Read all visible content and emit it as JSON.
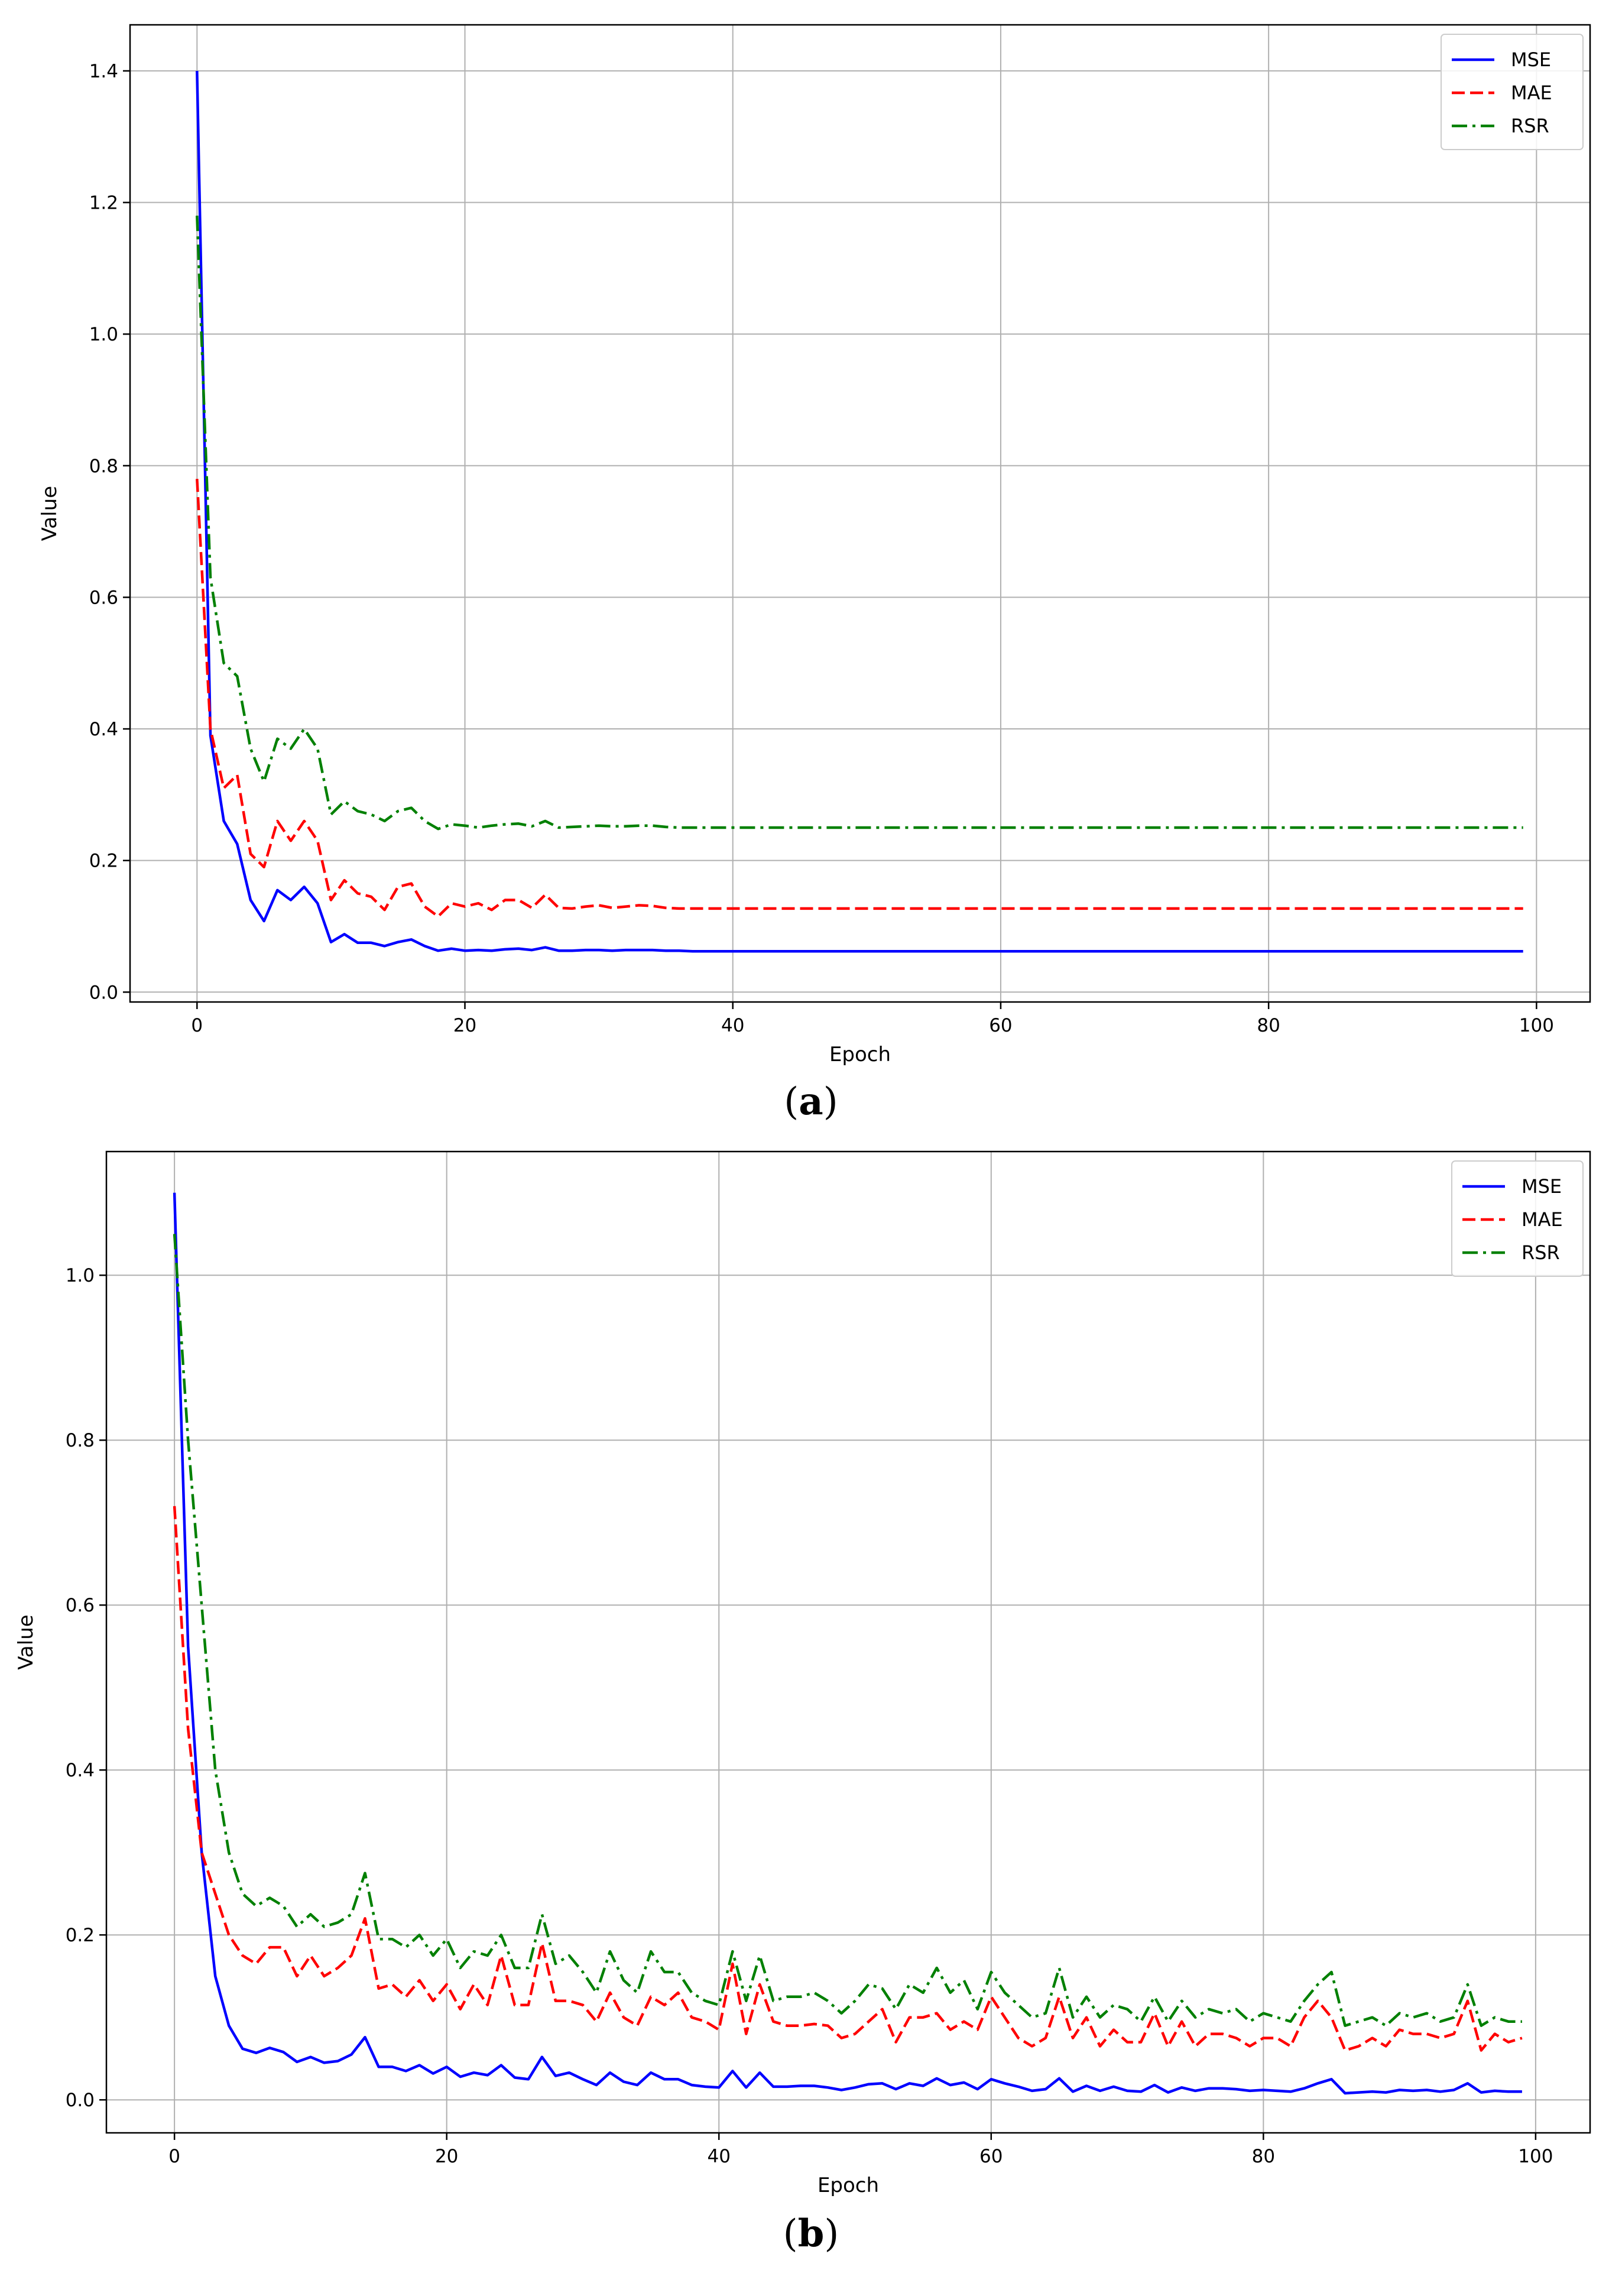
{
  "chart_data": [
    {
      "type": "line",
      "caption": "(a)",
      "caption_letter": "a",
      "xlabel": "Epoch",
      "ylabel": "Value",
      "xlim": [
        -5,
        104
      ],
      "ylim": [
        -0.015,
        1.47
      ],
      "xticks": [
        0,
        20,
        40,
        60,
        80,
        100
      ],
      "xtick_labels": [
        "0",
        "20",
        "40",
        "60",
        "80",
        "100"
      ],
      "yticks": [
        0.0,
        0.2,
        0.4,
        0.6,
        0.8,
        1.0,
        1.2,
        1.4
      ],
      "ytick_labels": [
        "0.0",
        "0.2",
        "0.4",
        "0.6",
        "0.8",
        "1.0",
        "1.2",
        "1.4"
      ],
      "grid": true,
      "legend_position": "top-right",
      "x": [
        0,
        1,
        2,
        3,
        4,
        5,
        6,
        7,
        8,
        9,
        10,
        11,
        12,
        13,
        14,
        15,
        16,
        17,
        18,
        19,
        20,
        21,
        22,
        23,
        24,
        25,
        26,
        27,
        28,
        29,
        30,
        31,
        32,
        33,
        34,
        35,
        36,
        37,
        38,
        39,
        40,
        41,
        42,
        43,
        44,
        45,
        46,
        47,
        48,
        49,
        50,
        51,
        52,
        53,
        54,
        55,
        56,
        57,
        58,
        59,
        60,
        61,
        62,
        63,
        64,
        65,
        66,
        67,
        68,
        69,
        70,
        71,
        72,
        73,
        74,
        75,
        76,
        77,
        78,
        79,
        80,
        81,
        82,
        83,
        84,
        85,
        86,
        87,
        88,
        89,
        90,
        91,
        92,
        93,
        94,
        95,
        96,
        97,
        98,
        99
      ],
      "series": [
        {
          "name": "MSE",
          "color": "#0000ff",
          "dash": "solid",
          "values": [
            1.4,
            0.39,
            0.26,
            0.225,
            0.14,
            0.108,
            0.155,
            0.14,
            0.16,
            0.135,
            0.076,
            0.088,
            0.075,
            0.075,
            0.07,
            0.076,
            0.08,
            0.07,
            0.063,
            0.066,
            0.063,
            0.064,
            0.063,
            0.065,
            0.066,
            0.064,
            0.068,
            0.063,
            0.063,
            0.064,
            0.064,
            0.063,
            0.064,
            0.064,
            0.064,
            0.063,
            0.063,
            0.062,
            0.062,
            0.062,
            0.062,
            0.062,
            0.062,
            0.062,
            0.062,
            0.062,
            0.062,
            0.062,
            0.062,
            0.062,
            0.062,
            0.062,
            0.062,
            0.062,
            0.062,
            0.062,
            0.062,
            0.062,
            0.062,
            0.062,
            0.062,
            0.062,
            0.062,
            0.062,
            0.062,
            0.062,
            0.062,
            0.062,
            0.062,
            0.062,
            0.062,
            0.062,
            0.062,
            0.062,
            0.062,
            0.062,
            0.062,
            0.062,
            0.062,
            0.062,
            0.062,
            0.062,
            0.062,
            0.062,
            0.062,
            0.062,
            0.062,
            0.062,
            0.062,
            0.062,
            0.062,
            0.062,
            0.062,
            0.062,
            0.062,
            0.062,
            0.062,
            0.062,
            0.062,
            0.062
          ]
        },
        {
          "name": "MAE",
          "color": "#ff0000",
          "dash": "dashed",
          "values": [
            0.78,
            0.4,
            0.31,
            0.33,
            0.21,
            0.19,
            0.26,
            0.23,
            0.26,
            0.23,
            0.14,
            0.17,
            0.15,
            0.145,
            0.125,
            0.16,
            0.165,
            0.13,
            0.115,
            0.135,
            0.13,
            0.135,
            0.125,
            0.14,
            0.14,
            0.128,
            0.148,
            0.128,
            0.127,
            0.13,
            0.132,
            0.128,
            0.13,
            0.132,
            0.131,
            0.128,
            0.127,
            0.127,
            0.127,
            0.127,
            0.127,
            0.127,
            0.127,
            0.127,
            0.127,
            0.127,
            0.127,
            0.127,
            0.127,
            0.127,
            0.127,
            0.127,
            0.127,
            0.127,
            0.127,
            0.127,
            0.127,
            0.127,
            0.127,
            0.127,
            0.127,
            0.127,
            0.127,
            0.127,
            0.127,
            0.127,
            0.127,
            0.127,
            0.127,
            0.127,
            0.127,
            0.127,
            0.127,
            0.127,
            0.127,
            0.127,
            0.127,
            0.127,
            0.127,
            0.127,
            0.127,
            0.127,
            0.127,
            0.127,
            0.127,
            0.127,
            0.127,
            0.127,
            0.127,
            0.127,
            0.127,
            0.127,
            0.127,
            0.127,
            0.127,
            0.127,
            0.127,
            0.127,
            0.127,
            0.127
          ]
        },
        {
          "name": "RSR",
          "color": "#008000",
          "dash": "dashdot",
          "values": [
            1.18,
            0.63,
            0.5,
            0.48,
            0.37,
            0.32,
            0.385,
            0.37,
            0.4,
            0.37,
            0.27,
            0.29,
            0.275,
            0.27,
            0.26,
            0.275,
            0.28,
            0.26,
            0.248,
            0.255,
            0.253,
            0.25,
            0.253,
            0.255,
            0.256,
            0.252,
            0.26,
            0.25,
            0.251,
            0.252,
            0.253,
            0.252,
            0.252,
            0.253,
            0.253,
            0.251,
            0.25,
            0.25,
            0.25,
            0.25,
            0.25,
            0.25,
            0.25,
            0.25,
            0.25,
            0.25,
            0.25,
            0.25,
            0.25,
            0.25,
            0.25,
            0.25,
            0.25,
            0.25,
            0.25,
            0.25,
            0.25,
            0.25,
            0.25,
            0.25,
            0.25,
            0.25,
            0.25,
            0.25,
            0.25,
            0.25,
            0.25,
            0.25,
            0.25,
            0.25,
            0.25,
            0.25,
            0.25,
            0.25,
            0.25,
            0.25,
            0.25,
            0.25,
            0.25,
            0.25,
            0.25,
            0.25,
            0.25,
            0.25,
            0.25,
            0.25,
            0.25,
            0.25,
            0.25,
            0.25,
            0.25,
            0.25,
            0.25,
            0.25,
            0.25,
            0.25,
            0.25,
            0.25,
            0.25,
            0.25
          ]
        }
      ]
    },
    {
      "type": "line",
      "caption": "(b)",
      "caption_letter": "b",
      "xlabel": "Epoch",
      "ylabel": "Value",
      "xlim": [
        -5,
        104
      ],
      "ylim": [
        -0.04,
        1.15
      ],
      "xticks": [
        0,
        20,
        40,
        60,
        80,
        100
      ],
      "xtick_labels": [
        "0",
        "20",
        "40",
        "60",
        "80",
        "100"
      ],
      "yticks": [
        0.0,
        0.2,
        0.4,
        0.6,
        0.8,
        1.0
      ],
      "ytick_labels": [
        "0.0",
        "0.2",
        "0.4",
        "0.6",
        "0.8",
        "1.0"
      ],
      "grid": true,
      "legend_position": "top-right",
      "x": [
        0,
        1,
        2,
        3,
        4,
        5,
        6,
        7,
        8,
        9,
        10,
        11,
        12,
        13,
        14,
        15,
        16,
        17,
        18,
        19,
        20,
        21,
        22,
        23,
        24,
        25,
        26,
        27,
        28,
        29,
        30,
        31,
        32,
        33,
        34,
        35,
        36,
        37,
        38,
        39,
        40,
        41,
        42,
        43,
        44,
        45,
        46,
        47,
        48,
        49,
        50,
        51,
        52,
        53,
        54,
        55,
        56,
        57,
        58,
        59,
        60,
        61,
        62,
        63,
        64,
        65,
        66,
        67,
        68,
        69,
        70,
        71,
        72,
        73,
        74,
        75,
        76,
        77,
        78,
        79,
        80,
        81,
        82,
        83,
        84,
        85,
        86,
        87,
        88,
        89,
        90,
        91,
        92,
        93,
        94,
        95,
        96,
        97,
        98,
        99
      ],
      "series": [
        {
          "name": "MSE",
          "color": "#0000ff",
          "dash": "solid",
          "values": [
            1.1,
            0.55,
            0.3,
            0.15,
            0.09,
            0.062,
            0.057,
            0.063,
            0.058,
            0.046,
            0.052,
            0.045,
            0.047,
            0.055,
            0.076,
            0.04,
            0.04,
            0.035,
            0.042,
            0.032,
            0.04,
            0.028,
            0.033,
            0.03,
            0.042,
            0.027,
            0.025,
            0.052,
            0.029,
            0.033,
            0.025,
            0.018,
            0.033,
            0.022,
            0.018,
            0.033,
            0.025,
            0.025,
            0.018,
            0.016,
            0.015,
            0.035,
            0.015,
            0.033,
            0.016,
            0.016,
            0.017,
            0.017,
            0.015,
            0.012,
            0.015,
            0.019,
            0.02,
            0.013,
            0.02,
            0.017,
            0.026,
            0.018,
            0.021,
            0.013,
            0.025,
            0.02,
            0.016,
            0.011,
            0.013,
            0.026,
            0.01,
            0.017,
            0.011,
            0.016,
            0.011,
            0.01,
            0.018,
            0.009,
            0.015,
            0.011,
            0.014,
            0.014,
            0.013,
            0.011,
            0.012,
            0.011,
            0.01,
            0.014,
            0.02,
            0.025,
            0.008,
            0.009,
            0.01,
            0.009,
            0.012,
            0.011,
            0.012,
            0.01,
            0.012,
            0.02,
            0.009,
            0.011,
            0.01,
            0.01
          ]
        },
        {
          "name": "MAE",
          "color": "#ff0000",
          "dash": "dashed",
          "values": [
            0.72,
            0.45,
            0.3,
            0.25,
            0.2,
            0.175,
            0.165,
            0.185,
            0.185,
            0.15,
            0.175,
            0.15,
            0.16,
            0.175,
            0.22,
            0.135,
            0.14,
            0.125,
            0.145,
            0.12,
            0.14,
            0.11,
            0.14,
            0.115,
            0.175,
            0.115,
            0.115,
            0.19,
            0.12,
            0.12,
            0.115,
            0.095,
            0.13,
            0.1,
            0.09,
            0.125,
            0.115,
            0.13,
            0.1,
            0.095,
            0.085,
            0.165,
            0.08,
            0.14,
            0.095,
            0.09,
            0.09,
            0.092,
            0.09,
            0.075,
            0.08,
            0.095,
            0.11,
            0.07,
            0.1,
            0.1,
            0.105,
            0.085,
            0.095,
            0.085,
            0.125,
            0.1,
            0.075,
            0.065,
            0.075,
            0.125,
            0.075,
            0.1,
            0.065,
            0.085,
            0.07,
            0.07,
            0.105,
            0.065,
            0.095,
            0.065,
            0.08,
            0.08,
            0.075,
            0.065,
            0.075,
            0.075,
            0.065,
            0.1,
            0.12,
            0.1,
            0.06,
            0.065,
            0.075,
            0.065,
            0.085,
            0.08,
            0.08,
            0.075,
            0.08,
            0.12,
            0.06,
            0.08,
            0.07,
            0.075
          ]
        },
        {
          "name": "RSR",
          "color": "#008000",
          "dash": "dashdot",
          "values": [
            1.05,
            0.8,
            0.6,
            0.4,
            0.3,
            0.25,
            0.235,
            0.245,
            0.235,
            0.21,
            0.225,
            0.21,
            0.215,
            0.225,
            0.275,
            0.195,
            0.195,
            0.185,
            0.2,
            0.175,
            0.195,
            0.16,
            0.18,
            0.175,
            0.2,
            0.16,
            0.16,
            0.225,
            0.165,
            0.175,
            0.155,
            0.13,
            0.18,
            0.145,
            0.13,
            0.18,
            0.155,
            0.155,
            0.13,
            0.12,
            0.115,
            0.18,
            0.12,
            0.175,
            0.12,
            0.125,
            0.125,
            0.13,
            0.12,
            0.105,
            0.12,
            0.14,
            0.135,
            0.11,
            0.14,
            0.13,
            0.16,
            0.13,
            0.145,
            0.11,
            0.155,
            0.13,
            0.115,
            0.1,
            0.105,
            0.16,
            0.1,
            0.125,
            0.1,
            0.115,
            0.11,
            0.095,
            0.125,
            0.095,
            0.12,
            0.1,
            0.11,
            0.105,
            0.11,
            0.095,
            0.105,
            0.1,
            0.095,
            0.12,
            0.14,
            0.155,
            0.09,
            0.095,
            0.1,
            0.09,
            0.105,
            0.1,
            0.105,
            0.095,
            0.1,
            0.14,
            0.09,
            0.1,
            0.095,
            0.095
          ]
        }
      ]
    }
  ]
}
